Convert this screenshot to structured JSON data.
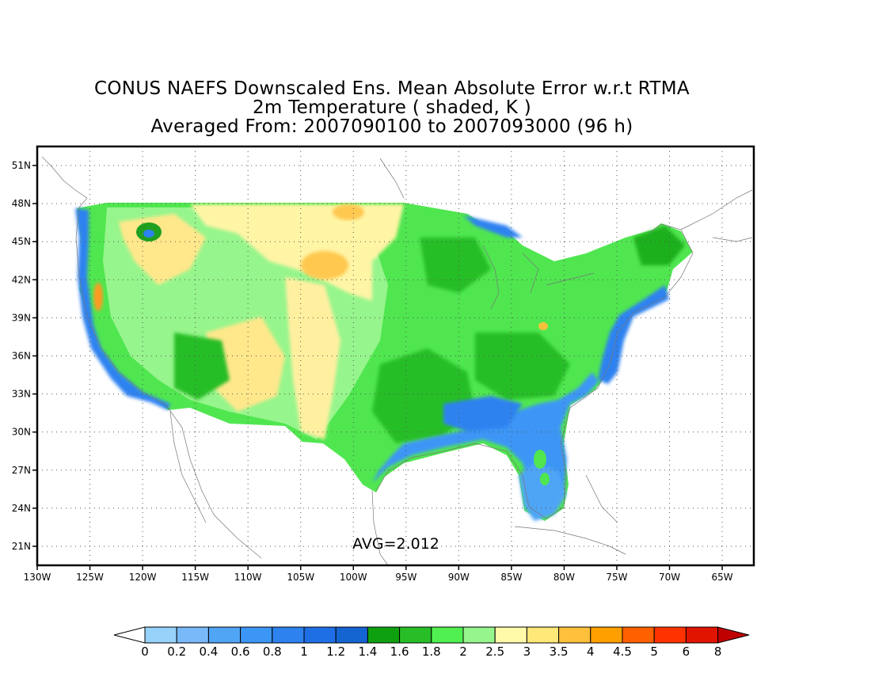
{
  "title": {
    "line1": "CONUS NAEFS Downscaled Ens. Mean Absolute Error w.r.t RTMA",
    "line2": "2m Temperature ( shaded, K )",
    "line3": "Averaged From: 2007090100 to 2007093000 (96 h)"
  },
  "map": {
    "lon_ticks": [
      "130W",
      "125W",
      "120W",
      "115W",
      "110W",
      "105W",
      "100W",
      "95W",
      "90W",
      "85W",
      "80W",
      "75W",
      "70W",
      "65W"
    ],
    "lat_ticks": [
      "51N",
      "48N",
      "45N",
      "42N",
      "39N",
      "36N",
      "33N",
      "30N",
      "27N",
      "24N",
      "21N"
    ],
    "lon_range": [
      -130,
      -62
    ],
    "lat_range": [
      19.5,
      52.5
    ],
    "grid": true,
    "annotation": "AVG=2.012"
  },
  "colorbar": {
    "levels": [
      "0",
      "0.2",
      "0.4",
      "0.6",
      "0.8",
      "1",
      "1.2",
      "1.4",
      "1.6",
      "1.8",
      "2",
      "2.5",
      "3",
      "3.5",
      "4",
      "4.5",
      "5",
      "6",
      "8"
    ],
    "colors": [
      "#96d2fa",
      "#78b9fa",
      "#50a5f5",
      "#3c96f5",
      "#2d82f0",
      "#1e6ee6",
      "#1464d2",
      "#0fa00f",
      "#28be28",
      "#50f050",
      "#96f58c",
      "#fffaaa",
      "#ffe878",
      "#ffc03c",
      "#ffa000",
      "#ff6000",
      "#ff3200",
      "#e11400",
      "#c00000"
    ],
    "under_color": "#ffffff",
    "over_color": "#a50000"
  }
}
